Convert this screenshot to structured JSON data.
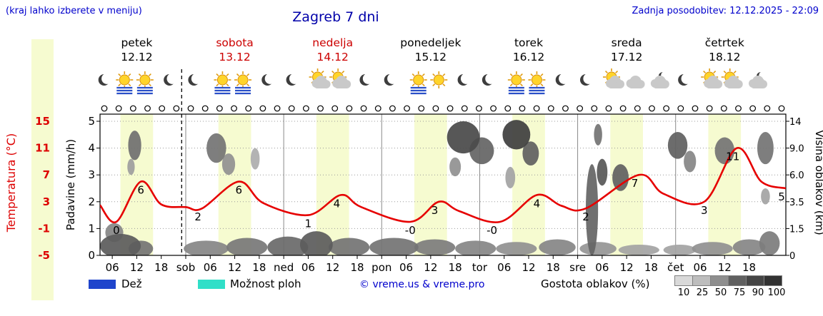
{
  "header": {
    "hint": "(kraj lahko izberete v meniju)",
    "title": "Zagreb 7 dni",
    "updated": "Zadnja posodobitev: 12.12.2025 - 22:09"
  },
  "colors": {
    "link_blue": "#0000cc",
    "title_blue": "#0000aa",
    "red": "#dd0000",
    "day_red": "#cc0000",
    "band_yellow": "#f6fbd0",
    "rain_blue": "#1f45cc",
    "shower_cyan": "#30dfc8",
    "curve_red": "#e60000",
    "grid_gray": "#999999"
  },
  "axes": {
    "temperature_label": "Temperatura (°C)",
    "temperature_ticks": [
      "15",
      "11",
      "7",
      "3",
      "-1",
      "-5"
    ],
    "precip_label": "Padavine (mm/h)",
    "precip_ticks": [
      "5",
      "4",
      "3",
      "2",
      "1",
      "0"
    ],
    "cloud_height_label": "Višina oblakov (km)",
    "cloud_height_ticks": [
      "14",
      "9.0",
      "6.0",
      "3.5",
      "1.5",
      "0"
    ]
  },
  "days": [
    {
      "name": "petek",
      "date": "12.12",
      "color": "black"
    },
    {
      "name": "sobota",
      "date": "13.12",
      "color": "red"
    },
    {
      "name": "nedelja",
      "date": "14.12",
      "color": "red"
    },
    {
      "name": "ponedeljek",
      "date": "15.12",
      "color": "black"
    },
    {
      "name": "torek",
      "date": "16.12",
      "color": "black"
    },
    {
      "name": "sreda",
      "date": "17.12",
      "color": "black"
    },
    {
      "name": "četrtek",
      "date": "18.12",
      "color": "black"
    }
  ],
  "legend": {
    "rain_label": "Dež",
    "showers_label": "Možnost ploh",
    "copyright": "© vreme.us & vreme.pro",
    "cloud_density_label": "Gostota oblakov (%)",
    "cloud_density_ticks": [
      "10",
      "25",
      "50",
      "75",
      "90",
      "100"
    ],
    "cloud_density_colors": [
      "#d9d9d9",
      "#bdbdbd",
      "#8e8e8e",
      "#606060",
      "#454545",
      "#323232"
    ]
  },
  "chart_data": {
    "type": "line",
    "title": "Zagreb 7 dni",
    "time_start_hour": 3,
    "time_span_hours": 168,
    "now_line_hour": 23,
    "daylight_band_hours": [
      8,
      16
    ],
    "x_ticks": [
      {
        "h": 6,
        "label": "06"
      },
      {
        "h": 12,
        "label": "12"
      },
      {
        "h": 18,
        "label": "18"
      },
      {
        "h": 24,
        "label": "sob"
      },
      {
        "h": 30,
        "label": "06"
      },
      {
        "h": 36,
        "label": "12"
      },
      {
        "h": 42,
        "label": "18"
      },
      {
        "h": 48,
        "label": "ned"
      },
      {
        "h": 54,
        "label": "06"
      },
      {
        "h": 60,
        "label": "12"
      },
      {
        "h": 66,
        "label": "18"
      },
      {
        "h": 72,
        "label": "pon"
      },
      {
        "h": 78,
        "label": "06"
      },
      {
        "h": 84,
        "label": "12"
      },
      {
        "h": 90,
        "label": "18"
      },
      {
        "h": 96,
        "label": "tor"
      },
      {
        "h": 102,
        "label": "06"
      },
      {
        "h": 108,
        "label": "12"
      },
      {
        "h": 114,
        "label": "18"
      },
      {
        "h": 120,
        "label": "sre"
      },
      {
        "h": 126,
        "label": "06"
      },
      {
        "h": 132,
        "label": "12"
      },
      {
        "h": 138,
        "label": "18"
      },
      {
        "h": 144,
        "label": "čet"
      },
      {
        "h": 150,
        "label": "06"
      },
      {
        "h": 156,
        "label": "12"
      },
      {
        "h": 162,
        "label": "18"
      }
    ],
    "temperature": {
      "unit": "°C",
      "axis_min": -5,
      "axis_max": 15,
      "points": [
        [
          3,
          2.5
        ],
        [
          7,
          0
        ],
        [
          13,
          6
        ],
        [
          18,
          2.6
        ],
        [
          24,
          2.2
        ],
        [
          28,
          2
        ],
        [
          37,
          6
        ],
        [
          43,
          2.8
        ],
        [
          54,
          1
        ],
        [
          62,
          4
        ],
        [
          67,
          2.2
        ],
        [
          79,
          0
        ],
        [
          86,
          3
        ],
        [
          91,
          1.6
        ],
        [
          101,
          0
        ],
        [
          110,
          4
        ],
        [
          116,
          2.4
        ],
        [
          122,
          2
        ],
        [
          135,
          7
        ],
        [
          141,
          4.2
        ],
        [
          151,
          3
        ],
        [
          159,
          11
        ],
        [
          165,
          6
        ],
        [
          171,
          5
        ]
      ],
      "labels": [
        {
          "hour": 7,
          "text": "0"
        },
        {
          "hour": 13,
          "text": "6"
        },
        {
          "hour": 27,
          "text": "2"
        },
        {
          "hour": 37,
          "text": "6"
        },
        {
          "hour": 54,
          "text": "1"
        },
        {
          "hour": 61,
          "text": "4"
        },
        {
          "hour": 79,
          "text": "-0"
        },
        {
          "hour": 85,
          "text": "3"
        },
        {
          "hour": 99,
          "text": "-0"
        },
        {
          "hour": 110,
          "text": "4"
        },
        {
          "hour": 122,
          "text": "2"
        },
        {
          "hour": 134,
          "text": "7"
        },
        {
          "hour": 151,
          "text": "3"
        },
        {
          "hour": 158,
          "text": "11"
        },
        {
          "hour": 170,
          "text": "5"
        }
      ]
    },
    "precipitation": {
      "unit": "mm/h",
      "axis_min": 0,
      "axis_max": 5
    },
    "cloud_height": {
      "unit": "km",
      "axis_min": 0,
      "axis_max": 14
    },
    "symbol_row": {
      "glyph": "circle",
      "count": 48
    },
    "sky_icons": [
      {
        "hour": 4,
        "type": "moon"
      },
      {
        "hour": 9,
        "type": "sun-fog"
      },
      {
        "hour": 14,
        "type": "sun-fog"
      },
      {
        "hour": 20,
        "type": "moon"
      },
      {
        "hour": 26,
        "type": "moon"
      },
      {
        "hour": 33,
        "type": "sun-fog"
      },
      {
        "hour": 38,
        "type": "sun-fog"
      },
      {
        "hour": 44,
        "type": "moon"
      },
      {
        "hour": 50,
        "type": "moon"
      },
      {
        "hour": 57,
        "type": "sun-cloud"
      },
      {
        "hour": 62,
        "type": "cloud-sun"
      },
      {
        "hour": 68,
        "type": "moon"
      },
      {
        "hour": 74,
        "type": "moon"
      },
      {
        "hour": 81,
        "type": "sun-fog"
      },
      {
        "hour": 86,
        "type": "sun"
      },
      {
        "hour": 92,
        "type": "moon"
      },
      {
        "hour": 98,
        "type": "moon"
      },
      {
        "hour": 105,
        "type": "sun-fog"
      },
      {
        "hour": 110,
        "type": "sun-fog"
      },
      {
        "hour": 116,
        "type": "moon"
      },
      {
        "hour": 122,
        "type": "moon"
      },
      {
        "hour": 129,
        "type": "sun-cloud"
      },
      {
        "hour": 134,
        "type": "cloud"
      },
      {
        "hour": 140,
        "type": "cloud-moon"
      },
      {
        "hour": 146,
        "type": "moon"
      },
      {
        "hour": 153,
        "type": "sun-cloud"
      },
      {
        "hour": 158,
        "type": "cloud-sun"
      },
      {
        "hour": 164,
        "type": "cloud-moon"
      }
    ],
    "clouds": [
      {
        "h": 8,
        "l": 0.35,
        "rh": 5,
        "rl": 0.45,
        "s": 0.72
      },
      {
        "h": 6.5,
        "l": 0.85,
        "rh": 2.2,
        "rl": 0.35,
        "s": 0.5
      },
      {
        "h": 13,
        "l": 0.25,
        "rh": 3,
        "rl": 0.3,
        "s": 0.6
      },
      {
        "h": 29,
        "l": 0.25,
        "rh": 5.5,
        "rl": 0.3,
        "s": 0.5
      },
      {
        "h": 39,
        "l": 0.3,
        "rh": 5,
        "rl": 0.35,
        "s": 0.58
      },
      {
        "h": 49,
        "l": 0.3,
        "rh": 5,
        "rl": 0.4,
        "s": 0.65
      },
      {
        "h": 56,
        "l": 0.4,
        "rh": 4,
        "rl": 0.5,
        "s": 0.72
      },
      {
        "h": 64,
        "l": 0.3,
        "rh": 5,
        "rl": 0.35,
        "s": 0.6
      },
      {
        "h": 75,
        "l": 0.3,
        "rh": 6,
        "rl": 0.35,
        "s": 0.6
      },
      {
        "h": 85,
        "l": 0.3,
        "rh": 5,
        "rl": 0.3,
        "s": 0.55
      },
      {
        "h": 95,
        "l": 0.25,
        "rh": 5,
        "rl": 0.3,
        "s": 0.5
      },
      {
        "h": 105,
        "l": 0.25,
        "rh": 5,
        "rl": 0.25,
        "s": 0.45
      },
      {
        "h": 115,
        "l": 0.3,
        "rh": 4.5,
        "rl": 0.3,
        "s": 0.5
      },
      {
        "h": 125,
        "l": 0.25,
        "rh": 4.5,
        "rl": 0.25,
        "s": 0.42
      },
      {
        "h": 135,
        "l": 0.2,
        "rh": 5,
        "rl": 0.2,
        "s": 0.35
      },
      {
        "h": 145,
        "l": 0.2,
        "rh": 4,
        "rl": 0.2,
        "s": 0.35
      },
      {
        "h": 153,
        "l": 0.25,
        "rh": 5,
        "rl": 0.25,
        "s": 0.45
      },
      {
        "h": 162,
        "l": 0.3,
        "rh": 4,
        "rl": 0.3,
        "s": 0.5
      },
      {
        "h": 167,
        "l": 0.45,
        "rh": 2.5,
        "rl": 0.45,
        "s": 0.55
      },
      {
        "h": 11.5,
        "l": 4.1,
        "rh": 1.6,
        "rl": 0.55,
        "s": 0.62
      },
      {
        "h": 10.6,
        "l": 3.3,
        "rh": 0.9,
        "rl": 0.3,
        "s": 0.38
      },
      {
        "h": 31.5,
        "l": 4.0,
        "rh": 2.4,
        "rl": 0.55,
        "s": 0.6
      },
      {
        "h": 34.5,
        "l": 3.4,
        "rh": 1.6,
        "rl": 0.4,
        "s": 0.45
      },
      {
        "h": 41,
        "l": 3.6,
        "rh": 1.1,
        "rl": 0.4,
        "s": 0.3
      },
      {
        "h": 92,
        "l": 4.4,
        "rh": 4,
        "rl": 0.6,
        "s": 0.82
      },
      {
        "h": 96.5,
        "l": 3.9,
        "rh": 3,
        "rl": 0.5,
        "s": 0.68
      },
      {
        "h": 90,
        "l": 3.3,
        "rh": 1.4,
        "rl": 0.35,
        "s": 0.45
      },
      {
        "h": 105,
        "l": 4.5,
        "rh": 3.4,
        "rl": 0.55,
        "s": 0.88
      },
      {
        "h": 108.5,
        "l": 3.8,
        "rh": 2,
        "rl": 0.45,
        "s": 0.7
      },
      {
        "h": 103.5,
        "l": 2.9,
        "rh": 1.2,
        "rl": 0.4,
        "s": 0.35
      },
      {
        "h": 123.5,
        "l": 1.7,
        "rh": 1.5,
        "rl": 1.7,
        "s": 0.68
      },
      {
        "h": 126,
        "l": 3.1,
        "rh": 1.3,
        "rl": 0.5,
        "s": 0.75
      },
      {
        "h": 130.5,
        "l": 2.9,
        "rh": 2,
        "rl": 0.5,
        "s": 0.7
      },
      {
        "h": 125,
        "l": 4.5,
        "rh": 1,
        "rl": 0.4,
        "s": 0.6
      },
      {
        "h": 144.5,
        "l": 4.1,
        "rh": 2.4,
        "rl": 0.5,
        "s": 0.7
      },
      {
        "h": 147.5,
        "l": 3.5,
        "rh": 1.5,
        "rl": 0.4,
        "s": 0.5
      },
      {
        "h": 156,
        "l": 3.9,
        "rh": 2.4,
        "rl": 0.5,
        "s": 0.6
      },
      {
        "h": 166,
        "l": 4.0,
        "rh": 2,
        "rl": 0.6,
        "s": 0.6
      },
      {
        "h": 166,
        "l": 2.2,
        "rh": 1.1,
        "rl": 0.3,
        "s": 0.35
      }
    ]
  }
}
